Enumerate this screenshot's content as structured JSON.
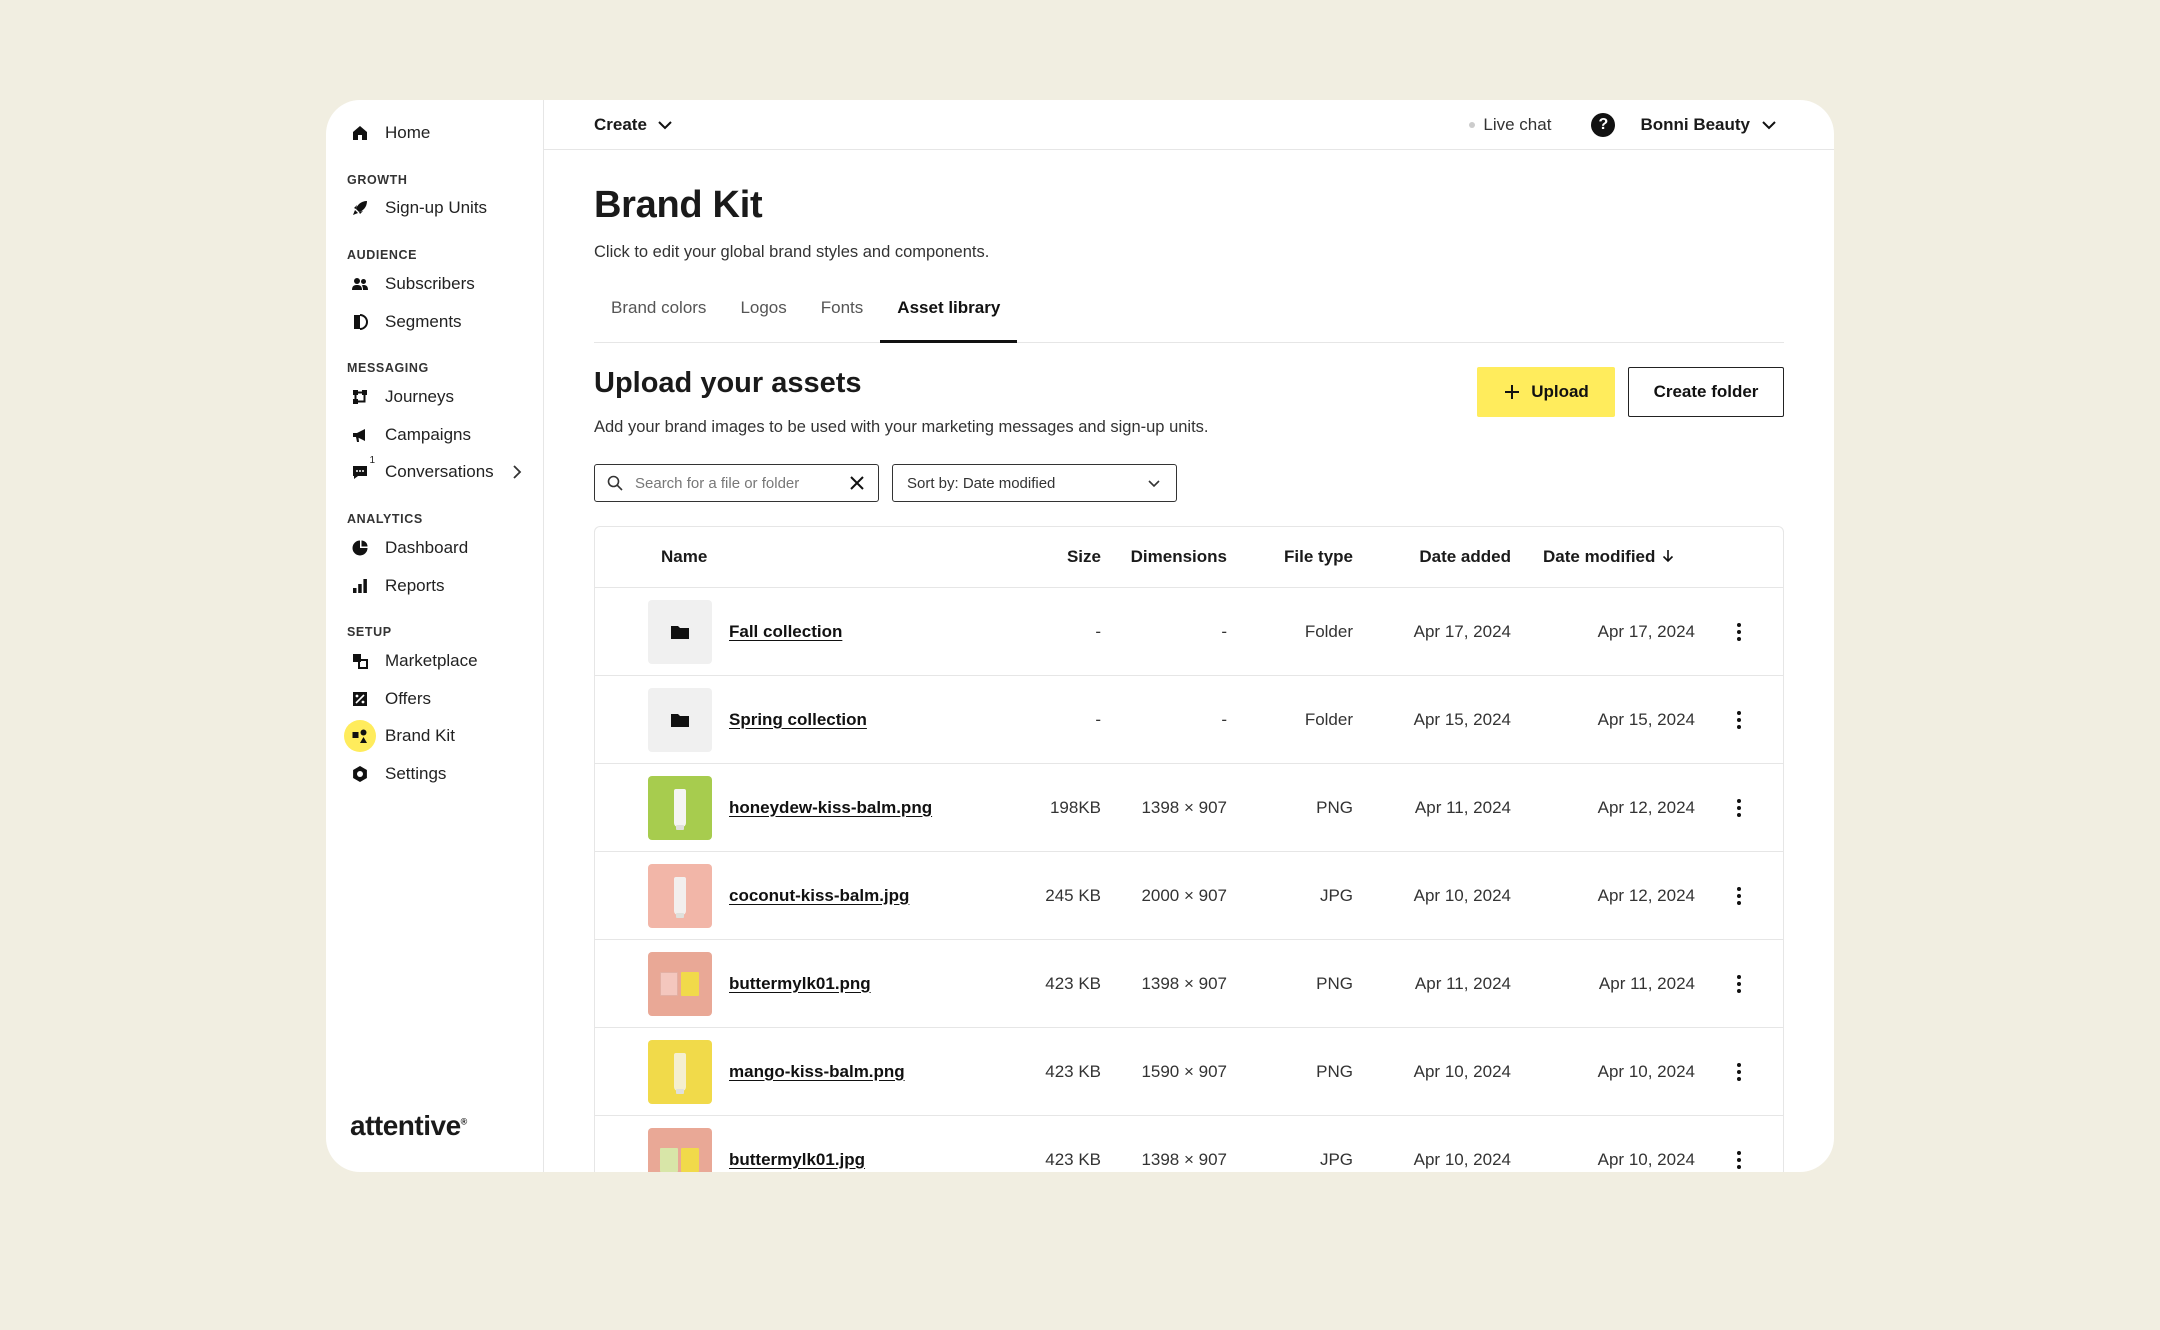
{
  "colors": {
    "background": "#F1EEE1",
    "accent": "#FFEC5C",
    "thumb_green": "#A7CC4E",
    "thumb_pink": "#F2B6A8",
    "thumb_salmon": "#E9A896",
    "thumb_yellow": "#F1DA4A"
  },
  "sidebar": {
    "home": "Home",
    "sections": {
      "growth": "GROWTH",
      "audience": "AUDIENCE",
      "messaging": "MESSAGING",
      "analytics": "ANALYTICS",
      "setup": "SETUP"
    },
    "items": {
      "signup_units": "Sign-up Units",
      "subscribers": "Subscribers",
      "segments": "Segments",
      "journeys": "Journeys",
      "campaigns": "Campaigns",
      "conversations": "Conversations",
      "conversations_badge": "1",
      "dashboard": "Dashboard",
      "reports": "Reports",
      "marketplace": "Marketplace",
      "offers": "Offers",
      "brand_kit": "Brand Kit",
      "settings": "Settings"
    },
    "logo": "attentive",
    "logo_mark": "®"
  },
  "topbar": {
    "create": "Create",
    "live_chat": "Live chat",
    "help": "?",
    "account": "Bonni Beauty"
  },
  "page": {
    "title": "Brand Kit",
    "subtitle": "Click to edit your global brand styles and components.",
    "tabs": [
      "Brand colors",
      "Logos",
      "Fonts",
      "Asset library"
    ],
    "active_tab": "Asset library"
  },
  "assets": {
    "title": "Upload your assets",
    "subtitle": "Add your brand images to be used with your marketing messages and sign-up units.",
    "upload_label": "Upload",
    "create_folder_label": "Create folder",
    "search_placeholder": "Search for a file or folder",
    "sort_label": "Sort by: Date modified"
  },
  "table": {
    "headers": {
      "name": "Name",
      "size": "Size",
      "dimensions": "Dimensions",
      "file_type": "File type",
      "date_added": "Date added",
      "date_modified": "Date modified"
    },
    "rows": [
      {
        "name": "Fall collection",
        "size": "-",
        "dimensions": "-",
        "type": "Folder",
        "added": "Apr 17, 2024",
        "modified": "Apr 17, 2024",
        "thumb": "folder-icon"
      },
      {
        "name": "Spring collection",
        "size": "-",
        "dimensions": "-",
        "type": "Folder",
        "added": "Apr 15, 2024",
        "modified": "Apr 15, 2024",
        "thumb": "folder-icon"
      },
      {
        "name": "honeydew-kiss-balm.png",
        "size": "198KB",
        "dimensions": "1398 × 907",
        "type": "PNG",
        "added": "Apr 11, 2024",
        "modified": "Apr 12, 2024",
        "thumb": "image-thumbnail"
      },
      {
        "name": "coconut-kiss-balm.jpg",
        "size": "245 KB",
        "dimensions": "2000 × 907",
        "type": "JPG",
        "added": "Apr 10, 2024",
        "modified": "Apr 12, 2024",
        "thumb": "image-thumbnail"
      },
      {
        "name": "buttermylk01.png",
        "size": "423 KB",
        "dimensions": "1398 × 907",
        "type": "PNG",
        "added": "Apr 11, 2024",
        "modified": "Apr 11, 2024",
        "thumb": "image-thumbnail"
      },
      {
        "name": "mango-kiss-balm.png",
        "size": "423 KB",
        "dimensions": "1590 × 907",
        "type": "PNG",
        "added": "Apr 10, 2024",
        "modified": "Apr 10, 2024",
        "thumb": "image-thumbnail"
      },
      {
        "name": "buttermylk01.jpg",
        "size": "423 KB",
        "dimensions": "1398 × 907",
        "type": "JPG",
        "added": "Apr 10, 2024",
        "modified": "Apr 10, 2024",
        "thumb": "image-thumbnail"
      }
    ]
  }
}
